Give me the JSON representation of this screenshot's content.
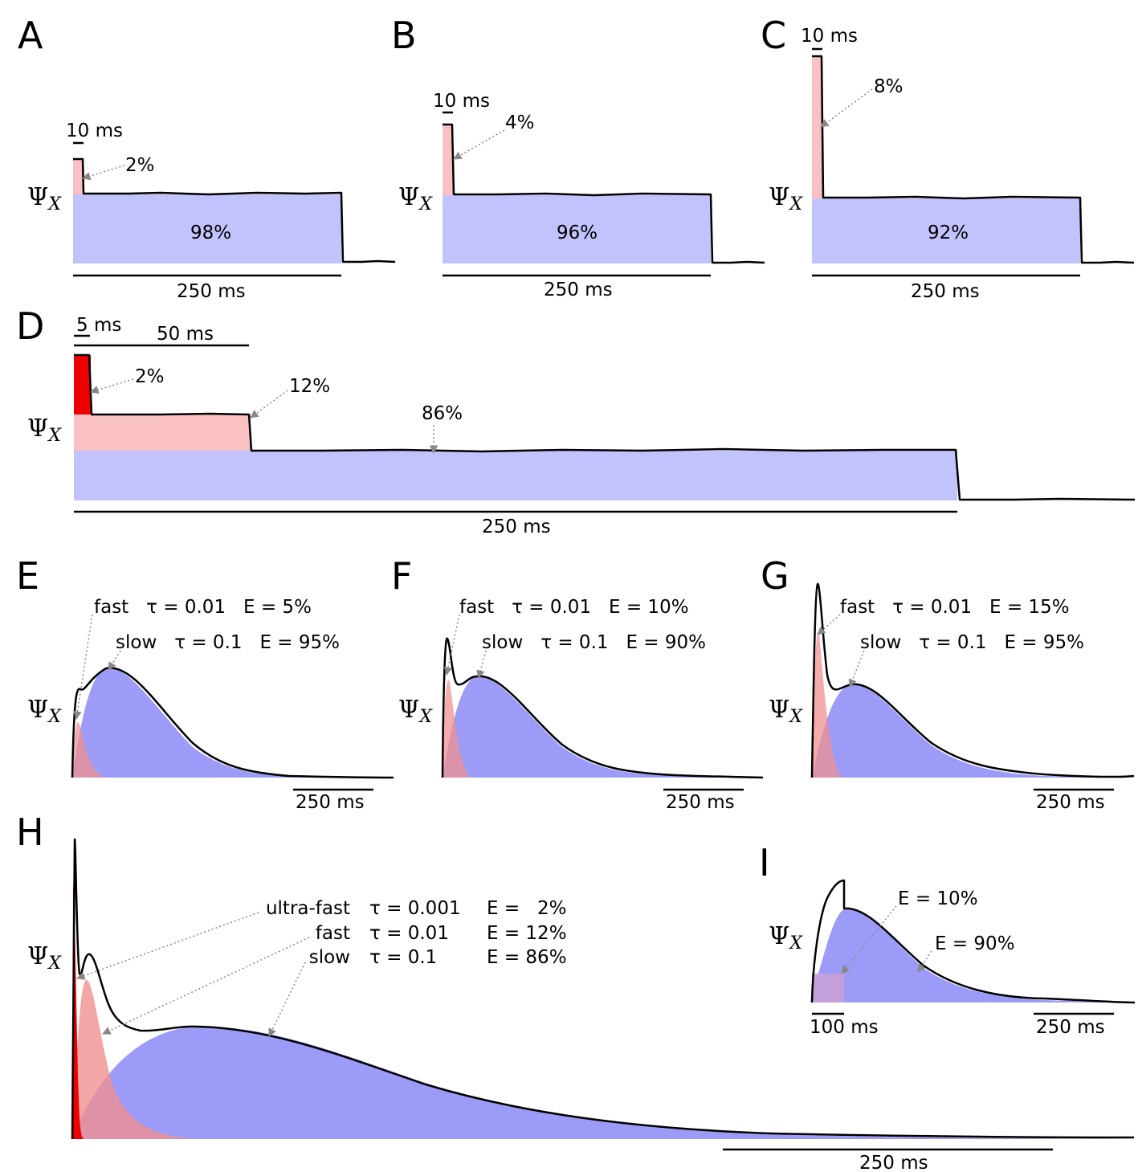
{
  "colors": {
    "pink": "#f9c1c1",
    "red": "#ee0000",
    "lavender": "#c2c2fc",
    "blue": "#9c9cf8",
    "pink_curve": "#f09090",
    "trace": "#000000"
  },
  "y_label": "Ψ",
  "y_label_sub": "X",
  "chart_data": [
    {
      "panel": "A",
      "type": "area",
      "subtype": "square-pulse",
      "segments": [
        {
          "duration_ms": 10,
          "percent": 2,
          "color": "pink"
        },
        {
          "duration_ms": 250,
          "percent": 98,
          "color": "lavender"
        }
      ],
      "labels": {
        "pulse": "10 ms",
        "pulse_pct": "2%",
        "main_pct": "98%",
        "scale": "250 ms"
      }
    },
    {
      "panel": "B",
      "type": "area",
      "subtype": "square-pulse",
      "segments": [
        {
          "duration_ms": 10,
          "percent": 4,
          "color": "pink"
        },
        {
          "duration_ms": 250,
          "percent": 96,
          "color": "lavender"
        }
      ],
      "labels": {
        "pulse": "10 ms",
        "pulse_pct": "4%",
        "main_pct": "96%",
        "scale": "250 ms"
      }
    },
    {
      "panel": "C",
      "type": "area",
      "subtype": "square-pulse",
      "segments": [
        {
          "duration_ms": 10,
          "percent": 8,
          "color": "pink"
        },
        {
          "duration_ms": 250,
          "percent": 92,
          "color": "lavender"
        }
      ],
      "labels": {
        "pulse": "10 ms",
        "pulse_pct": "8%",
        "main_pct": "92%",
        "scale": "250 ms"
      }
    },
    {
      "panel": "D",
      "type": "area",
      "subtype": "square-pulse",
      "segments": [
        {
          "duration_ms": 5,
          "percent": 2,
          "color": "red"
        },
        {
          "duration_ms": 50,
          "percent": 12,
          "color": "pink"
        },
        {
          "duration_ms": 250,
          "percent": 86,
          "color": "lavender"
        }
      ],
      "labels": {
        "pulse1": "5 ms",
        "pulse2": "50 ms",
        "pct1": "2%",
        "pct2": "12%",
        "pct3": "86%",
        "scale": "250 ms"
      }
    },
    {
      "panel": "E",
      "type": "area",
      "subtype": "double-exponential",
      "components": [
        {
          "name": "fast",
          "tau": 0.01,
          "E_percent": 5,
          "color": "pink_curve"
        },
        {
          "name": "slow",
          "tau": 0.1,
          "E_percent": 95,
          "color": "blue"
        }
      ],
      "labels": {
        "fast": "fast   τ = 0.01   E = 5%",
        "slow": "slow   τ = 0.1   E = 95%",
        "scale": "250 ms"
      }
    },
    {
      "panel": "F",
      "type": "area",
      "subtype": "double-exponential",
      "components": [
        {
          "name": "fast",
          "tau": 0.01,
          "E_percent": 10,
          "color": "pink_curve"
        },
        {
          "name": "slow",
          "tau": 0.1,
          "E_percent": 90,
          "color": "blue"
        }
      ],
      "labels": {
        "fast": "fast   τ = 0.01   E = 10%",
        "slow": "slow   τ = 0.1   E = 90%",
        "scale": "250 ms"
      }
    },
    {
      "panel": "G",
      "type": "area",
      "subtype": "double-exponential",
      "components": [
        {
          "name": "fast",
          "tau": 0.01,
          "E_percent": 15,
          "color": "pink_curve"
        },
        {
          "name": "slow",
          "tau": 0.1,
          "E_percent": 95,
          "color": "blue"
        }
      ],
      "labels": {
        "fast": "fast   τ = 0.01   E = 15%",
        "slow": "slow   τ = 0.1   E = 95%",
        "scale": "250 ms"
      }
    },
    {
      "panel": "H",
      "type": "area",
      "subtype": "triple-exponential",
      "components": [
        {
          "name": "ultra-fast",
          "tau": 0.001,
          "E_percent": 2,
          "color": "red"
        },
        {
          "name": "fast",
          "tau": 0.01,
          "E_percent": 12,
          "color": "pink_curve"
        },
        {
          "name": "slow",
          "tau": 0.1,
          "E_percent": 86,
          "color": "blue"
        }
      ],
      "labels": {
        "rows": [
          {
            "name": "ultra-fast",
            "tau": "τ = 0.001",
            "E": "E =   2%"
          },
          {
            "name": "fast",
            "tau": "τ = 0.01",
            "E": "E = 12%"
          },
          {
            "name": "slow",
            "tau": "τ = 0.1",
            "E": "E = 86%"
          }
        ],
        "scale": "250 ms"
      }
    },
    {
      "panel": "I",
      "type": "area",
      "subtype": "square+exponential",
      "components": [
        {
          "name": "square",
          "duration_ms": 100,
          "E_percent": 10,
          "color": "pink"
        },
        {
          "name": "slow",
          "E_percent": 90,
          "color": "blue"
        }
      ],
      "labels": {
        "e1": "E = 10%",
        "e2": "E = 90%",
        "pulse": "100 ms",
        "scale": "250 ms"
      }
    }
  ]
}
